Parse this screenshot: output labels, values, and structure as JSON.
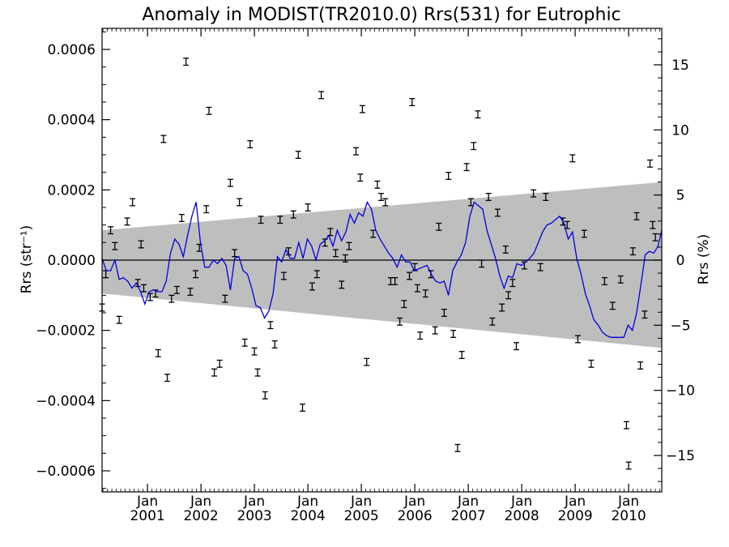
{
  "chart_data": {
    "type": "line",
    "title": "Anomaly in MODIST(TR2010.0) Rrs(531) for Eutrophic",
    "ylabel_left": "Rrs (str⁻¹)",
    "ylabel_right": "Rrs (%)",
    "xlabel": "",
    "xlim": [
      2000.15,
      2010.62
    ],
    "ylim": [
      -0.00066,
      0.00066
    ],
    "y2lim": [
      -17.8,
      17.8
    ],
    "grid": false,
    "legend": "none",
    "yticks_left": [
      {
        "value": 0.0006,
        "label": "0.0006"
      },
      {
        "value": 0.0004,
        "label": "0.0004"
      },
      {
        "value": 0.0002,
        "label": "0.0002"
      },
      {
        "value": 0.0,
        "label": "0.0000"
      },
      {
        "value": -0.0002,
        "label": "−0.0002"
      },
      {
        "value": -0.0004,
        "label": "−0.0004"
      },
      {
        "value": -0.0006,
        "label": "−0.0006"
      }
    ],
    "yticks_right": [
      {
        "value": 15,
        "label": "15"
      },
      {
        "value": 10,
        "label": "10"
      },
      {
        "value": 5,
        "label": "5"
      },
      {
        "value": 0,
        "label": "0"
      },
      {
        "value": -5,
        "label": "−5"
      },
      {
        "value": -10,
        "label": "−10"
      },
      {
        "value": -15,
        "label": "−15"
      }
    ],
    "xticks": [
      {
        "value": 2001.0,
        "month": "Jan",
        "year": "2001"
      },
      {
        "value": 2002.0,
        "month": "Jan",
        "year": "2002"
      },
      {
        "value": 2003.0,
        "month": "Jan",
        "year": "2003"
      },
      {
        "value": 2004.0,
        "month": "Jan",
        "year": "2004"
      },
      {
        "value": 2005.0,
        "month": "Jan",
        "year": "2005"
      },
      {
        "value": 2006.0,
        "month": "Jan",
        "year": "2006"
      },
      {
        "value": 2007.0,
        "month": "Jan",
        "year": "2007"
      },
      {
        "value": 2008.0,
        "month": "Jan",
        "year": "2008"
      },
      {
        "value": 2009.0,
        "month": "Jan",
        "year": "2009"
      },
      {
        "value": 2010.0,
        "month": "Jan",
        "year": "2010"
      }
    ],
    "band": {
      "color": "#bebebe",
      "upper": [
        [
          2000.15,
          8.5e-05
        ],
        [
          2010.62,
          0.000222
        ]
      ],
      "lower": [
        [
          2000.15,
          -9.5e-05
        ],
        [
          2010.62,
          -0.00025
        ]
      ]
    },
    "zero_line": 0,
    "errorbars": {
      "color": "#000000",
      "halfwidth": 1e-05,
      "points": [
        [
          2000.15,
          -0.000135
        ],
        [
          2000.22,
          -4e-05
        ],
        [
          2000.31,
          8.5e-05
        ],
        [
          2000.39,
          4e-05
        ],
        [
          2000.47,
          -0.00017
        ],
        [
          2000.62,
          0.00011
        ],
        [
          2000.72,
          0.000165
        ],
        [
          2000.82,
          -6.5e-05
        ],
        [
          2000.88,
          4.5e-05
        ],
        [
          2000.93,
          -8e-05
        ],
        [
          2001.05,
          -0.000105
        ],
        [
          2001.15,
          -9.5e-05
        ],
        [
          2001.2,
          -0.000265
        ],
        [
          2001.3,
          0.000345
        ],
        [
          2001.37,
          -0.000335
        ],
        [
          2001.45,
          -0.00011
        ],
        [
          2001.55,
          -8.5e-05
        ],
        [
          2001.64,
          0.00012
        ],
        [
          2001.72,
          0.000565
        ],
        [
          2001.8,
          -9e-05
        ],
        [
          2001.9,
          -4e-05
        ],
        [
          2001.97,
          3.5e-05
        ],
        [
          2002.1,
          0.000145
        ],
        [
          2002.15,
          0.000425
        ],
        [
          2002.25,
          -0.00032
        ],
        [
          2002.35,
          -0.000295
        ],
        [
          2002.45,
          -0.00011
        ],
        [
          2002.55,
          0.00022
        ],
        [
          2002.63,
          2e-05
        ],
        [
          2002.72,
          0.000165
        ],
        [
          2002.82,
          -0.000235
        ],
        [
          2002.92,
          0.00033
        ],
        [
          2003.0,
          -0.00026
        ],
        [
          2003.06,
          -0.00032
        ],
        [
          2003.12,
          0.000115
        ],
        [
          2003.2,
          -0.000385
        ],
        [
          2003.3,
          -0.000185
        ],
        [
          2003.38,
          -0.00024
        ],
        [
          2003.48,
          0.000115
        ],
        [
          2003.55,
          -4.5e-05
        ],
        [
          2003.64,
          2.5e-05
        ],
        [
          2003.73,
          0.00013
        ],
        [
          2003.82,
          0.0003
        ],
        [
          2003.9,
          -0.00042
        ],
        [
          2004.0,
          0.00015
        ],
        [
          2004.08,
          -7.5e-05
        ],
        [
          2004.17,
          -4e-05
        ],
        [
          2004.25,
          0.00047
        ],
        [
          2004.32,
          5e-05
        ],
        [
          2004.42,
          8e-05
        ],
        [
          2004.52,
          2e-05
        ],
        [
          2004.63,
          -7e-05
        ],
        [
          2004.7,
          5e-06
        ],
        [
          2004.77,
          4e-05
        ],
        [
          2004.9,
          0.00031
        ],
        [
          2004.98,
          0.000235
        ],
        [
          2005.02,
          0.00043
        ],
        [
          2005.1,
          -0.00029
        ],
        [
          2005.22,
          7.5e-05
        ],
        [
          2005.3,
          0.000215
        ],
        [
          2005.37,
          0.00018
        ],
        [
          2005.45,
          0.000165
        ],
        [
          2005.55,
          -6e-05
        ],
        [
          2005.63,
          -6e-05
        ],
        [
          2005.72,
          -0.000175
        ],
        [
          2005.8,
          -0.000125
        ],
        [
          2005.9,
          -4.5e-05
        ],
        [
          2005.95,
          0.00045
        ],
        [
          2006.0,
          -2e-05
        ],
        [
          2006.05,
          -8e-05
        ],
        [
          2006.1,
          -0.000215
        ],
        [
          2006.2,
          -9.5e-05
        ],
        [
          2006.3,
          -4e-05
        ],
        [
          2006.38,
          -0.0002
        ],
        [
          2006.45,
          9.5e-05
        ],
        [
          2006.55,
          -0.00015
        ],
        [
          2006.63,
          0.00024
        ],
        [
          2006.72,
          -0.00021
        ],
        [
          2006.8,
          -0.000535
        ],
        [
          2006.88,
          -0.00027
        ],
        [
          2006.97,
          0.000265
        ],
        [
          2007.05,
          0.000165
        ],
        [
          2007.1,
          0.000325
        ],
        [
          2007.18,
          0.000415
        ],
        [
          2007.25,
          -1e-05
        ],
        [
          2007.38,
          0.00018
        ],
        [
          2007.45,
          -0.000175
        ],
        [
          2007.55,
          0.000135
        ],
        [
          2007.63,
          -0.000135
        ],
        [
          2007.7,
          3e-05
        ],
        [
          2007.75,
          -0.0001
        ],
        [
          2007.83,
          -6.5e-05
        ],
        [
          2007.9,
          -0.000245
        ],
        [
          2008.05,
          -1.5e-05
        ],
        [
          2008.22,
          0.00019
        ],
        [
          2008.35,
          -2e-05
        ],
        [
          2008.45,
          0.00018
        ],
        [
          2008.77,
          0.00011
        ],
        [
          2008.85,
          0.0001
        ],
        [
          2008.95,
          0.00029
        ],
        [
          2009.05,
          -0.000225
        ],
        [
          2009.17,
          7.5e-05
        ],
        [
          2009.3,
          -0.000295
        ],
        [
          2009.55,
          -6e-05
        ],
        [
          2009.7,
          -0.00013
        ],
        [
          2009.85,
          -5.5e-05
        ],
        [
          2009.96,
          -0.00047
        ],
        [
          2010.0,
          -0.000585
        ],
        [
          2010.08,
          2.5e-05
        ],
        [
          2010.15,
          0.000125
        ],
        [
          2010.22,
          -0.0003
        ],
        [
          2010.3,
          -0.000155
        ],
        [
          2010.4,
          0.000275
        ],
        [
          2010.45,
          0.0001
        ],
        [
          2010.5,
          6.5e-05
        ]
      ]
    },
    "series": [
      {
        "color": "#0000dd",
        "points": [
          [
            2000.15,
            5e-06
          ],
          [
            2000.23,
            -3e-05
          ],
          [
            2000.31,
            -3e-05
          ],
          [
            2000.39,
            0.0
          ],
          [
            2000.47,
            -5.5e-05
          ],
          [
            2000.55,
            -5e-05
          ],
          [
            2000.63,
            -6e-05
          ],
          [
            2000.71,
            -8e-05
          ],
          [
            2000.79,
            -6.5e-05
          ],
          [
            2000.87,
            -9e-05
          ],
          [
            2000.95,
            -0.000125
          ],
          [
            2001.03,
            -9e-05
          ],
          [
            2001.11,
            -8.5e-05
          ],
          [
            2001.19,
            -9e-05
          ],
          [
            2001.27,
            -9e-05
          ],
          [
            2001.35,
            -6e-05
          ],
          [
            2001.43,
            2e-05
          ],
          [
            2001.51,
            6e-05
          ],
          [
            2001.59,
            4.5e-05
          ],
          [
            2001.67,
            1e-05
          ],
          [
            2001.75,
            7e-05
          ],
          [
            2001.83,
            0.000125
          ],
          [
            2001.91,
            0.000165
          ],
          [
            2001.99,
            5e-05
          ],
          [
            2002.07,
            -2e-05
          ],
          [
            2002.15,
            -2e-05
          ],
          [
            2002.23,
            0.0
          ],
          [
            2002.31,
            -1e-05
          ],
          [
            2002.39,
            5e-06
          ],
          [
            2002.47,
            -1.5e-05
          ],
          [
            2002.55,
            -8.5e-05
          ],
          [
            2002.63,
            5e-06
          ],
          [
            2002.71,
            1e-05
          ],
          [
            2002.79,
            -3e-05
          ],
          [
            2002.87,
            -4e-05
          ],
          [
            2002.95,
            -8e-05
          ],
          [
            2003.03,
            -0.00013
          ],
          [
            2003.11,
            -0.000135
          ],
          [
            2003.19,
            -0.000165
          ],
          [
            2003.27,
            -0.000145
          ],
          [
            2003.35,
            -9.5e-05
          ],
          [
            2003.43,
            1e-05
          ],
          [
            2003.51,
            -5e-06
          ],
          [
            2003.59,
            3e-05
          ],
          [
            2003.67,
            5e-06
          ],
          [
            2003.75,
            5e-06
          ],
          [
            2003.83,
            5e-05
          ],
          [
            2003.91,
            5e-06
          ],
          [
            2003.99,
            6e-05
          ],
          [
            2004.07,
            4e-05
          ],
          [
            2004.15,
            0.0
          ],
          [
            2004.23,
            4.5e-05
          ],
          [
            2004.31,
            5.5e-05
          ],
          [
            2004.39,
            7e-05
          ],
          [
            2004.47,
            4e-05
          ],
          [
            2004.55,
            8.5e-05
          ],
          [
            2004.63,
            5.5e-05
          ],
          [
            2004.71,
            8e-05
          ],
          [
            2004.79,
            0.00013
          ],
          [
            2004.87,
            0.000105
          ],
          [
            2004.95,
            0.000135
          ],
          [
            2005.03,
            0.000125
          ],
          [
            2005.11,
            0.000165
          ],
          [
            2005.19,
            0.000145
          ],
          [
            2005.27,
            8.5e-05
          ],
          [
            2005.35,
            6e-05
          ],
          [
            2005.43,
            4e-05
          ],
          [
            2005.51,
            2e-05
          ],
          [
            2005.59,
            5e-06
          ],
          [
            2005.67,
            -2e-05
          ],
          [
            2005.75,
            1.5e-05
          ],
          [
            2005.83,
            -5e-06
          ],
          [
            2005.91,
            -5e-06
          ],
          [
            2005.99,
            -3e-05
          ],
          [
            2006.07,
            -2.5e-05
          ],
          [
            2006.15,
            -2e-05
          ],
          [
            2006.23,
            -1.5e-05
          ],
          [
            2006.31,
            -4e-05
          ],
          [
            2006.39,
            -6e-05
          ],
          [
            2006.47,
            -6.5e-05
          ],
          [
            2006.55,
            -6e-05
          ],
          [
            2006.63,
            -0.0001
          ],
          [
            2006.71,
            -3e-05
          ],
          [
            2006.79,
            -5e-06
          ],
          [
            2006.87,
            1.5e-05
          ],
          [
            2006.95,
            5e-05
          ],
          [
            2007.03,
            0.000125
          ],
          [
            2007.11,
            0.000165
          ],
          [
            2007.19,
            0.000155
          ],
          [
            2007.27,
            0.000145
          ],
          [
            2007.35,
            8.5e-05
          ],
          [
            2007.43,
            4.5e-05
          ],
          [
            2007.51,
            5e-06
          ],
          [
            2007.59,
            -4.5e-05
          ],
          [
            2007.67,
            -8e-05
          ],
          [
            2007.75,
            -4.5e-05
          ],
          [
            2007.83,
            -5e-05
          ],
          [
            2007.91,
            -1e-05
          ],
          [
            2007.99,
            -1.5e-05
          ],
          [
            2008.07,
            -5e-06
          ],
          [
            2008.15,
            5e-06
          ],
          [
            2008.23,
            2e-05
          ],
          [
            2008.31,
            5e-05
          ],
          [
            2008.39,
            8e-05
          ],
          [
            2008.47,
            0.0001
          ],
          [
            2008.55,
            0.000105
          ],
          [
            2008.63,
            0.000115
          ],
          [
            2008.71,
            0.000125
          ],
          [
            2008.79,
            0.000105
          ],
          [
            2008.87,
            6e-05
          ],
          [
            2008.95,
            8e-05
          ],
          [
            2009.03,
            5e-06
          ],
          [
            2009.11,
            -4e-05
          ],
          [
            2009.19,
            -9.5e-05
          ],
          [
            2009.27,
            -0.00013
          ],
          [
            2009.35,
            -0.00017
          ],
          [
            2009.43,
            -0.000185
          ],
          [
            2009.51,
            -0.000205
          ],
          [
            2009.59,
            -0.000215
          ],
          [
            2009.67,
            -0.00022
          ],
          [
            2009.75,
            -0.00022
          ],
          [
            2009.83,
            -0.00022
          ],
          [
            2009.91,
            -0.00022
          ],
          [
            2009.99,
            -0.000185
          ],
          [
            2010.07,
            -0.0002
          ],
          [
            2010.15,
            -0.00015
          ],
          [
            2010.23,
            -7e-05
          ],
          [
            2010.31,
            1.5e-05
          ],
          [
            2010.39,
            2.5e-05
          ],
          [
            2010.47,
            2e-05
          ],
          [
            2010.55,
            4e-05
          ],
          [
            2010.62,
            8.5e-05
          ]
        ]
      }
    ]
  }
}
